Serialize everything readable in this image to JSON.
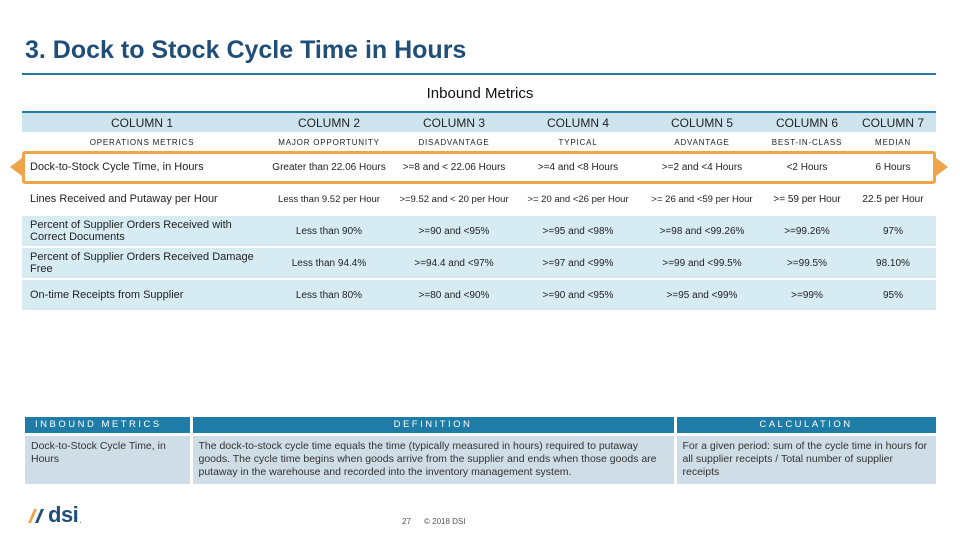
{
  "slide": {
    "title": "3. Dock to Stock Cycle Time in Hours",
    "subtitle": "Inbound Metrics"
  },
  "metrics_table": {
    "columns": [
      "COLUMN 1",
      "COLUMN 2",
      "COLUMN 3",
      "COLUMN 4",
      "COLUMN 5",
      "COLUMN 6",
      "COLUMN 7"
    ],
    "categories": [
      "OPERATIONS METRICS",
      "MAJOR OPPORTUNITY",
      "DISADVANTAGE",
      "TYPICAL",
      "ADVANTAGE",
      "BEST-IN-CLASS",
      "MEDIAN"
    ],
    "rows": [
      [
        "Dock-to-Stock Cycle Time, in Hours",
        "Greater than 22.06 Hours",
        ">=8 and < 22.06 Hours",
        ">=4  and <8 Hours",
        ">=2 and <4 Hours",
        "<2 Hours",
        "6 Hours"
      ],
      [
        "Lines Received and Putaway per Hour",
        "Less than 9.52 per Hour",
        ">=9.52 and < 20 per Hour",
        ">= 20 and <26 per Hour",
        ">= 26 and <59 per Hour",
        ">= 59 per Hour",
        "22.5 per Hour"
      ],
      [
        "Percent of Supplier Orders Received with Correct Documents",
        "Less than 90%",
        ">=90 and <95%",
        ">=95 and <98%",
        ">=98 and <99.26%",
        ">=99.26%",
        "97%"
      ],
      [
        "Percent of Supplier Orders Received Damage Free",
        "Less than 94.4%",
        ">=94.4 and <97%",
        ">=97 and <99%",
        ">=99 and <99.5%",
        ">=99.5%",
        "98.10%"
      ],
      [
        "On-time Receipts from Supplier",
        "Less than 80%",
        ">=80 and <90%",
        ">=90 and <95%",
        ">=95 and <99%",
        ">=99%",
        "95%"
      ]
    ],
    "highlight_color": "#f0a44a",
    "header_color": "#cde4ef",
    "row_color": "#d7ebf3"
  },
  "definition_table": {
    "headers": [
      "INBOUND METRICS",
      "DEFINITION",
      "CALCULATION"
    ],
    "metric": "Dock-to-Stock Cycle Time, in Hours",
    "definition": "The dock-to-stock cycle time equals the time (typically measured in hours) required to putaway goods. The cycle time begins when goods arrive from the supplier and ends when those goods are putaway in the warehouse and recorded into the inventory management system.",
    "calculation": "For a given period: sum of the cycle time in hours for all supplier receipts / Total number of supplier receipts",
    "header_color": "#1e7ca7"
  },
  "footer": {
    "logo_text": "dsi",
    "logo_suffix": ".",
    "page_number": "27",
    "copyright": "© 2018 DSI"
  }
}
